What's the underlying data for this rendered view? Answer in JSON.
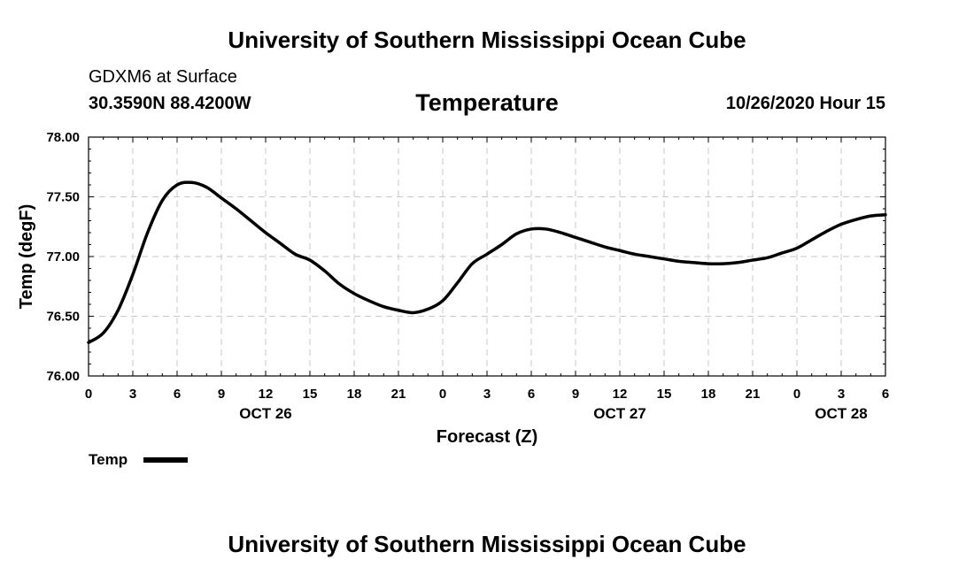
{
  "page": {
    "header_title": "University of Southern Mississippi Ocean Cube",
    "footer_title": "University of Southern Mississippi Ocean Cube",
    "station_line1": "GDXM6 at Surface",
    "station_line2": "30.3590N 88.4200W",
    "datetime": "10/26/2020 Hour 15"
  },
  "chart_data": {
    "type": "line",
    "title": "Temperature",
    "xlabel": "Forecast (Z)",
    "ylabel": "Temp (degF)",
    "xlim": [
      0,
      54
    ],
    "ylim": [
      76.0,
      78.0
    ],
    "grid": true,
    "line_color": "#000000",
    "x_ticks": [
      0,
      3,
      6,
      9,
      12,
      15,
      18,
      21,
      24,
      27,
      30,
      33,
      36,
      39,
      42,
      45,
      48,
      51,
      54
    ],
    "x_tick_labels": [
      "0",
      "3",
      "6",
      "9",
      "12",
      "15",
      "18",
      "21",
      "0",
      "3",
      "6",
      "9",
      "12",
      "15",
      "18",
      "21",
      "0",
      "3",
      "6"
    ],
    "y_ticks": [
      76.0,
      76.5,
      77.0,
      77.5,
      78.0
    ],
    "y_tick_labels": [
      "76.00",
      "76.50",
      "77.00",
      "77.50",
      "78.00"
    ],
    "date_labels": [
      {
        "x": 12,
        "label": "OCT 26"
      },
      {
        "x": 36,
        "label": "OCT 27"
      },
      {
        "x": 51,
        "label": "OCT 28"
      }
    ],
    "legend": {
      "label": "Temp",
      "placement": "bottom-left"
    },
    "series": [
      {
        "name": "Temp",
        "x": [
          0,
          1,
          2,
          3,
          4,
          5,
          6,
          7,
          8,
          9,
          10,
          11,
          12,
          13,
          14,
          15,
          16,
          17,
          18,
          19,
          20,
          21,
          22,
          23,
          24,
          25,
          26,
          27,
          28,
          29,
          30,
          31,
          32,
          33,
          34,
          35,
          36,
          37,
          38,
          39,
          40,
          41,
          42,
          43,
          44,
          45,
          46,
          47,
          48,
          49,
          50,
          51,
          52,
          53,
          54
        ],
        "values": [
          76.28,
          76.36,
          76.55,
          76.85,
          77.2,
          77.47,
          77.6,
          77.62,
          77.58,
          77.49,
          77.4,
          77.3,
          77.2,
          77.11,
          77.02,
          76.97,
          76.88,
          76.77,
          76.69,
          76.63,
          76.58,
          76.55,
          76.53,
          76.56,
          76.63,
          76.78,
          76.94,
          77.02,
          77.1,
          77.19,
          77.23,
          77.23,
          77.2,
          77.16,
          77.12,
          77.08,
          77.05,
          77.02,
          77.0,
          76.98,
          76.96,
          76.95,
          76.94,
          76.94,
          76.95,
          76.97,
          76.99,
          77.03,
          77.07,
          77.14,
          77.21,
          77.27,
          77.31,
          77.34,
          77.35
        ]
      }
    ]
  }
}
